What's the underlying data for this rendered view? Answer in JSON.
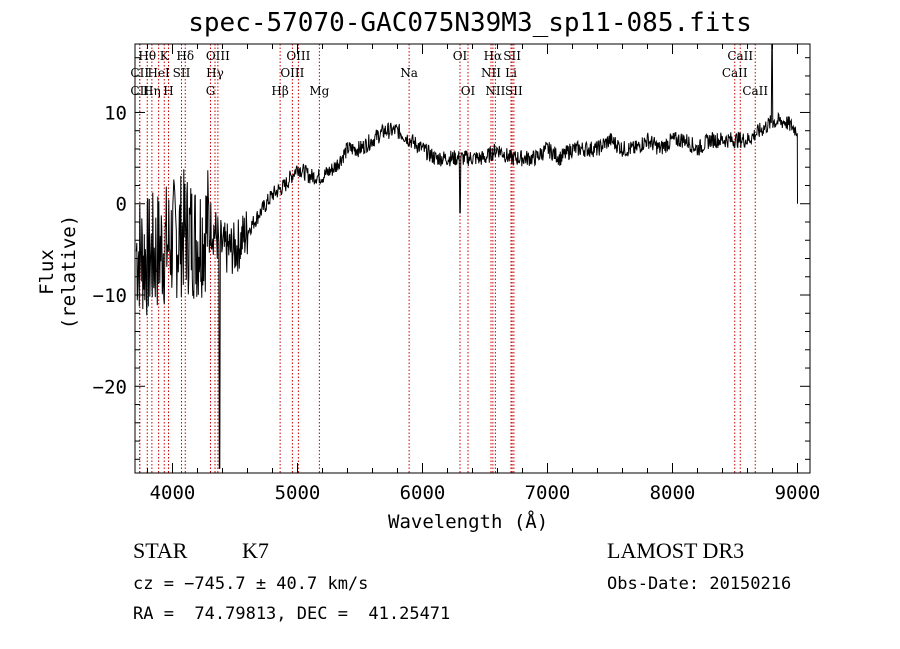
{
  "chart_data": {
    "type": "line",
    "title": "spec-57070-GAC075N39M3_sp11-085.fits",
    "xlabel": "Wavelength (Å)",
    "ylabel": "Flux (relative)",
    "xlim": [
      3700,
      9100
    ],
    "ylim": [
      -29.5,
      17.5
    ],
    "x_ticks": [
      4000,
      5000,
      6000,
      7000,
      8000,
      9000
    ],
    "x_tick_labels": [
      "4000",
      "5000",
      "6000",
      "7000",
      "8000",
      "9000"
    ],
    "y_ticks": [
      10,
      0,
      -10,
      -20
    ],
    "y_tick_labels": [
      "10",
      "0",
      "−10",
      "−20"
    ],
    "series": [
      {
        "name": "flux",
        "x": [
          3700,
          3800,
          3900,
          4000,
          4100,
          4200,
          4300,
          4400,
          4500,
          4600,
          4700,
          4800,
          4900,
          5000,
          5100,
          5200,
          5300,
          5400,
          5500,
          5600,
          5700,
          5800,
          5900,
          6000,
          6100,
          6200,
          6300,
          6400,
          6500,
          6600,
          6700,
          6800,
          6900,
          7000,
          7100,
          7200,
          7300,
          7400,
          7500,
          7600,
          7700,
          7800,
          7900,
          8000,
          8100,
          8200,
          8300,
          8400,
          8500,
          8600,
          8700,
          8800,
          8900,
          9000
        ],
        "y": [
          -5,
          -6,
          -5,
          -4,
          -3,
          -4,
          -2,
          -5,
          -5,
          -3,
          -1,
          1,
          2,
          4,
          3,
          3,
          4,
          6,
          6,
          7,
          8,
          8,
          7,
          6,
          5,
          5,
          5,
          5,
          5,
          6,
          5,
          5,
          5,
          6,
          5,
          6,
          6,
          6,
          7,
          6,
          6,
          7,
          6,
          7,
          7,
          6,
          7,
          7,
          7,
          7,
          8,
          9,
          9,
          8
        ]
      }
    ],
    "lines": [
      {
        "label": "Hθ",
        "x": 3798,
        "row": 1
      },
      {
        "label": "K",
        "x": 3934,
        "row": 1
      },
      {
        "label": "Hδ",
        "x": 4102,
        "row": 1
      },
      {
        "label": "OIII",
        "x": 4363,
        "row": 1
      },
      {
        "label": "OIII",
        "x": 5007,
        "row": 1
      },
      {
        "label": "OI",
        "x": 6300,
        "row": 1
      },
      {
        "label": "Hα",
        "x": 6563,
        "row": 1
      },
      {
        "label": "SII",
        "x": 6717,
        "row": 1
      },
      {
        "label": "CaII",
        "x": 8542,
        "row": 1
      },
      {
        "label": "CII",
        "x": 3738,
        "row": 2
      },
      {
        "label": "HeI",
        "x": 3889,
        "row": 2
      },
      {
        "label": "SII",
        "x": 4072,
        "row": 2
      },
      {
        "label": "Hγ",
        "x": 4340,
        "row": 2
      },
      {
        "label": "OIII",
        "x": 4959,
        "row": 2
      },
      {
        "label": "Na",
        "x": 5893,
        "row": 2
      },
      {
        "label": "NII",
        "x": 6548,
        "row": 2
      },
      {
        "label": "Li",
        "x": 6708,
        "row": 2
      },
      {
        "label": "CaII",
        "x": 8498,
        "row": 2
      },
      {
        "label": "CII",
        "x": 3738,
        "row": 3
      },
      {
        "label": "Hη",
        "x": 3835,
        "row": 3
      },
      {
        "label": "H",
        "x": 3968,
        "row": 3
      },
      {
        "label": "G",
        "x": 4304,
        "row": 3
      },
      {
        "label": "Hβ",
        "x": 4861,
        "row": 3
      },
      {
        "label": "Mg",
        "x": 5175,
        "row": 3
      },
      {
        "label": "OI",
        "x": 6364,
        "row": 3
      },
      {
        "label": "NII",
        "x": 6583,
        "row": 3
      },
      {
        "label": "SII",
        "x": 6731,
        "row": 3
      },
      {
        "label": "CaII",
        "x": 8662,
        "row": 3
      }
    ]
  },
  "info": {
    "class_label": "STAR",
    "subclass": "K7",
    "survey": "LAMOST DR3",
    "cz": "cz = −745.7 ± 40.7 km/s",
    "obs_date": "Obs-Date: 20150216",
    "coords": "RA =  74.79813, DEC =  41.25471"
  },
  "colors": {
    "line_marker": "#cc0000",
    "spectrum": "#000000",
    "axes": "#000000"
  }
}
